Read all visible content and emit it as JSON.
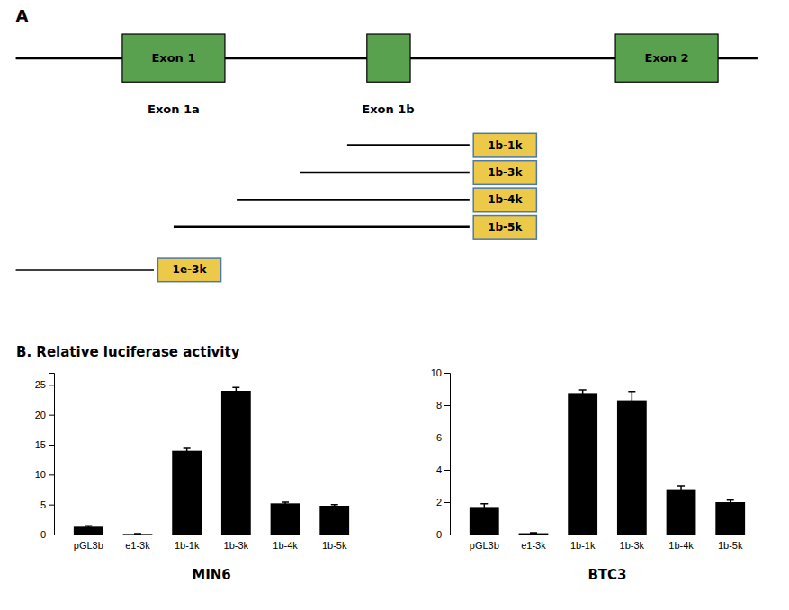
{
  "chart_data": [
    {
      "type": "bar",
      "title": "MIN6",
      "categories": [
        "pGL3b",
        "e1-3k",
        "1b-1k",
        "1b-3k",
        "1b-4k",
        "1b-5k"
      ],
      "values": [
        1.3,
        0.1,
        14.0,
        24.0,
        5.2,
        4.8
      ],
      "errors": [
        0.15,
        0.05,
        0.4,
        0.55,
        0.2,
        0.2
      ],
      "color": "#000000",
      "ylim": [
        0,
        27
      ],
      "yticks": [
        0,
        5,
        10,
        15,
        20,
        25
      ],
      "annotations": [
        "A",
        "Exon 1",
        "Exon 2",
        "Exon 1a",
        "Exon 1b",
        "1b-1k",
        "1b-3k",
        "1b-4k",
        "1b-5k",
        "1e-3k",
        "B. Relative luciferase activity"
      ]
    },
    {
      "type": "bar",
      "title": "BTC3",
      "categories": [
        "pGL3b",
        "e1-3k",
        "1b-1k",
        "1b-3k",
        "1b-4k",
        "1b-5k"
      ],
      "values": [
        1.7,
        0.08,
        8.7,
        8.3,
        2.8,
        2.0
      ],
      "errors": [
        0.2,
        0.03,
        0.25,
        0.55,
        0.2,
        0.12
      ],
      "color": "#000000",
      "ylim": [
        0,
        10
      ],
      "yticks": [
        0,
        2,
        4,
        6,
        8,
        10
      ]
    }
  ]
}
